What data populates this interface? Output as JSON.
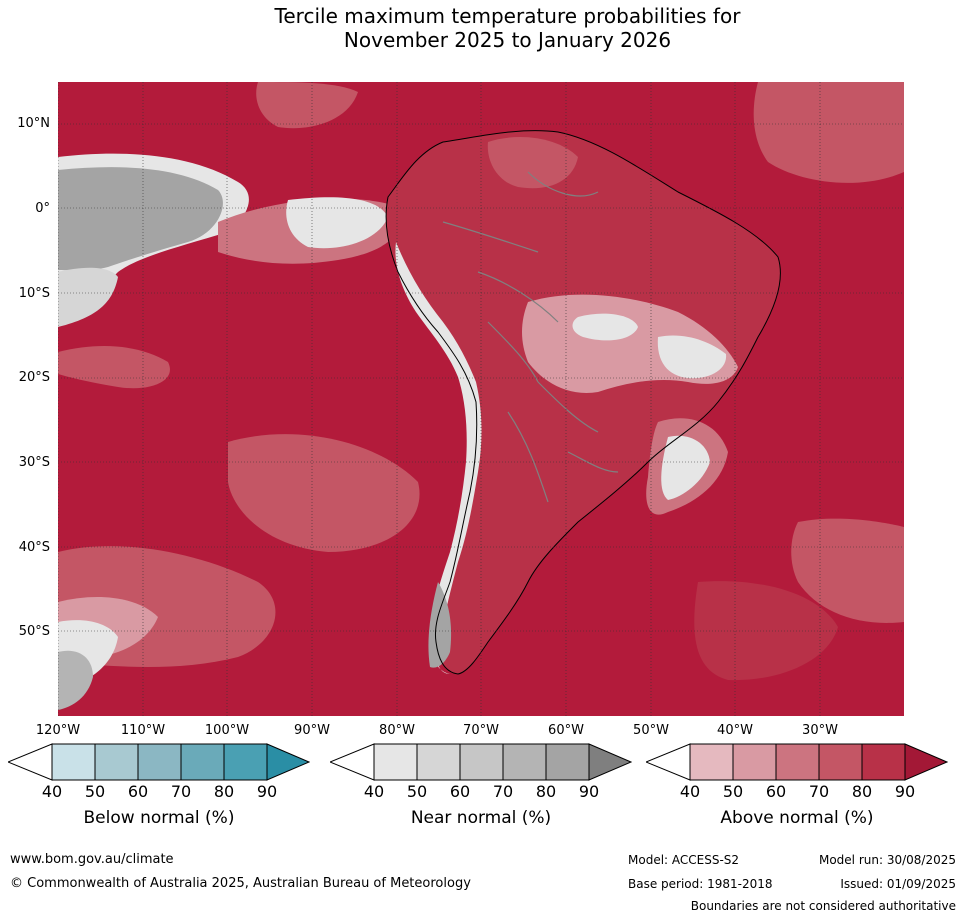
{
  "title_line1": "Tercile maximum temperature probabilities for",
  "title_line2": "November 2025 to January 2026",
  "lat_labels": [
    "10°N",
    "0°",
    "10°S",
    "20°S",
    "30°S",
    "40°S",
    "50°S"
  ],
  "lon_labels": [
    "120°W",
    "110°W",
    "100°W",
    "90°W",
    "80°W",
    "70°W",
    "60°W",
    "50°W",
    "40°W",
    "30°W"
  ],
  "colorbars": [
    {
      "label": "Below normal (%)",
      "ticks": [
        "40",
        "50",
        "60",
        "70",
        "80",
        "90"
      ],
      "colors": [
        "#ffffff",
        "#c9e1e8",
        "#a8c9d1",
        "#8bb7c3",
        "#6aaab9",
        "#4aa0b3",
        "#2a8ea5"
      ]
    },
    {
      "label": "Near normal (%)",
      "ticks": [
        "40",
        "50",
        "60",
        "70",
        "80",
        "90"
      ],
      "colors": [
        "#ffffff",
        "#e6e6e6",
        "#d6d6d6",
        "#c6c6c6",
        "#b4b4b4",
        "#a4a4a4",
        "#7f7f7f"
      ]
    },
    {
      "label": "Above normal (%)",
      "ticks": [
        "40",
        "50",
        "60",
        "70",
        "80",
        "90"
      ],
      "colors": [
        "#ffffff",
        "#e5b9bf",
        "#d99aa3",
        "#cc7480",
        "#c45665",
        "#b83148",
        "#a31836"
      ]
    }
  ],
  "map_colors": {
    "ocean_dominant": "#b31b3b",
    "above_80": "#b83148",
    "above_70": "#c45665",
    "above_60": "#cc7480",
    "above_50": "#d99aa3",
    "above_40": "#e5b9bf",
    "near_90": "#a4a4a4",
    "near_80": "#b4b4b4",
    "near_50": "#d6d6d6",
    "near_40": "#e6e6e6",
    "below_50": "#c9e1e8"
  },
  "footer": {
    "website": "www.bom.gov.au/climate",
    "copyright": "© Commonwealth of Australia 2025, Australian Bureau of Meteorology",
    "model": "Model: ACCESS-S2",
    "base_period": "Base period: 1981-2018",
    "model_run": "Model run: 30/08/2025",
    "issued": "Issued: 01/09/2025",
    "boundaries_note": "Boundaries are not considered authoritative"
  }
}
